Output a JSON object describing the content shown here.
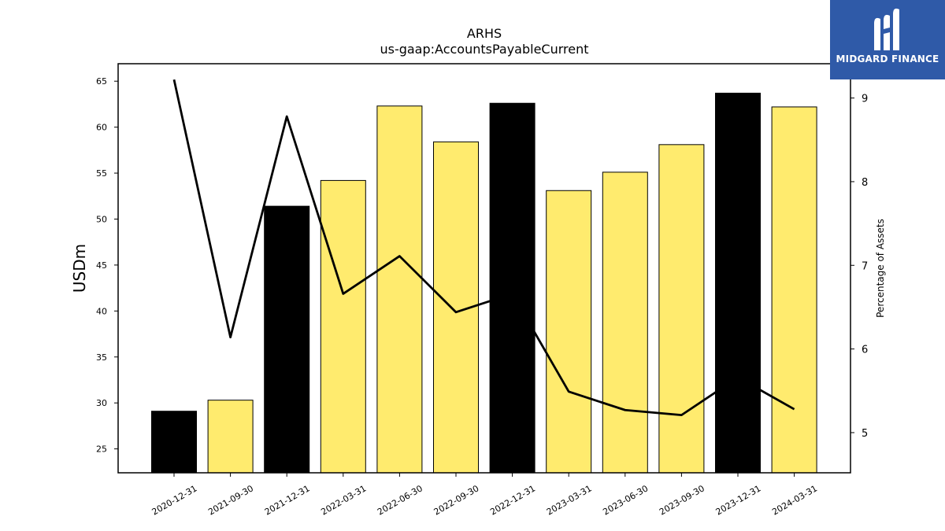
{
  "chart_data": {
    "type": "bar",
    "title": "ARHS",
    "subtitle": "us-gaap:AccountsPayableCurrent",
    "ylabel": "USDm",
    "y2label": "Percentage of Assets",
    "categories": [
      "2020-12-31",
      "2021-09-30",
      "2021-12-31",
      "2022-03-31",
      "2022-06-30",
      "2022-09-30",
      "2022-12-31",
      "2023-03-31",
      "2023-06-30",
      "2023-09-30",
      "2023-12-31",
      "2024-03-31"
    ],
    "series": [
      {
        "type": "bar",
        "values": [
          29.1,
          30.3,
          51.4,
          54.2,
          62.3,
          58.4,
          62.6,
          53.1,
          55.1,
          58.1,
          63.7,
          62.2
        ],
        "colors": [
          "#000000",
          "#ffeb6e",
          "#000000",
          "#ffeb6e",
          "#ffeb6e",
          "#ffeb6e",
          "#000000",
          "#ffeb6e",
          "#ffeb6e",
          "#ffeb6e",
          "#000000",
          "#ffeb6e"
        ]
      },
      {
        "type": "line",
        "axis": "right",
        "values": [
          9.22,
          6.14,
          8.78,
          6.66,
          7.11,
          6.44,
          6.66,
          5.49,
          5.27,
          5.21,
          5.66,
          5.28
        ],
        "color": "#000000"
      }
    ],
    "ylim": [
      22.4,
      66.9
    ],
    "yticks": [
      25,
      30,
      35,
      40,
      45,
      50,
      55,
      60,
      65
    ],
    "y2lim": [
      4.52,
      9.41
    ],
    "y2ticks": [
      5,
      6,
      7,
      8,
      9
    ],
    "grid": false
  },
  "logo": {
    "text": "MIDGARD FINANCE",
    "icon": "midgard-logo-icon",
    "background": "#2f5aa8"
  }
}
